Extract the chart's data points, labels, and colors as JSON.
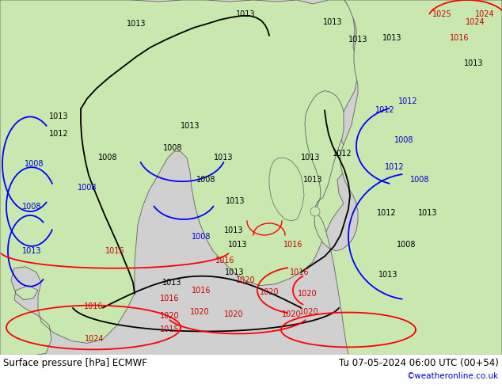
{
  "title_left": "Surface pressure [hPa] ECMWF",
  "title_right": "Tu 07-05-2024 06:00 UTC (00+54)",
  "copyright": "©weatheronline.co.uk",
  "bg_ocean_color": "#d2d2d2",
  "land_color": "#c8e8b0",
  "text_color_black": "#000000",
  "text_color_blue": "#0000cc",
  "text_color_red": "#cc0000",
  "bottom_bar_color": "#f0f0f0",
  "figsize": [
    6.34,
    4.9
  ],
  "dpi": 100,
  "black_labels": [
    [
      172,
      30,
      "1013"
    ],
    [
      310,
      18,
      "1013"
    ],
    [
      420,
      28,
      "1013"
    ],
    [
      74,
      148,
      "1013"
    ],
    [
      74,
      170,
      "1012"
    ],
    [
      136,
      200,
      "1008"
    ],
    [
      218,
      188,
      "1008"
    ],
    [
      240,
      160,
      "1013"
    ],
    [
      260,
      228,
      "1008"
    ],
    [
      282,
      200,
      "1013"
    ],
    [
      297,
      255,
      "1013"
    ],
    [
      295,
      292,
      "1013"
    ],
    [
      300,
      310,
      "1013"
    ],
    [
      296,
      345,
      "1013"
    ],
    [
      217,
      358,
      "1013"
    ],
    [
      392,
      200,
      "1013"
    ],
    [
      395,
      228,
      "1013"
    ],
    [
      432,
      195,
      "1012"
    ],
    [
      488,
      270,
      "1012"
    ],
    [
      513,
      310,
      "1008"
    ],
    [
      540,
      270,
      "1013"
    ],
    [
      490,
      348,
      "1013"
    ],
    [
      452,
      50,
      "1013"
    ],
    [
      495,
      48,
      "1013"
    ],
    [
      598,
      80,
      "1013"
    ]
  ],
  "red_labels": [
    [
      145,
      318,
      "1016"
    ],
    [
      118,
      388,
      "1016"
    ],
    [
      214,
      378,
      "1016"
    ],
    [
      254,
      368,
      "1016"
    ],
    [
      284,
      330,
      "1016"
    ],
    [
      310,
      355,
      "1020"
    ],
    [
      340,
      370,
      "1020"
    ],
    [
      370,
      310,
      "1016"
    ],
    [
      378,
      345,
      "1016"
    ],
    [
      388,
      372,
      "1020"
    ],
    [
      390,
      395,
      "1020"
    ],
    [
      368,
      398,
      "1020"
    ],
    [
      295,
      398,
      "1020"
    ],
    [
      252,
      395,
      "1020"
    ],
    [
      214,
      400,
      "1020"
    ],
    [
      214,
      418,
      "1015"
    ],
    [
      119,
      430,
      "1024"
    ],
    [
      600,
      28,
      "1024"
    ],
    [
      612,
      18,
      "1024"
    ],
    [
      558,
      18,
      "1025"
    ],
    [
      580,
      48,
      "1016"
    ]
  ],
  "blue_labels": [
    [
      43,
      208,
      "1008"
    ],
    [
      40,
      262,
      "1008"
    ],
    [
      40,
      318,
      "1013"
    ],
    [
      110,
      238,
      "1008"
    ],
    [
      254,
      300,
      "1008"
    ],
    [
      510,
      178,
      "1008"
    ],
    [
      530,
      228,
      "1008"
    ],
    [
      486,
      140,
      "1012"
    ],
    [
      515,
      128,
      "1012"
    ],
    [
      498,
      212,
      "1012"
    ]
  ]
}
